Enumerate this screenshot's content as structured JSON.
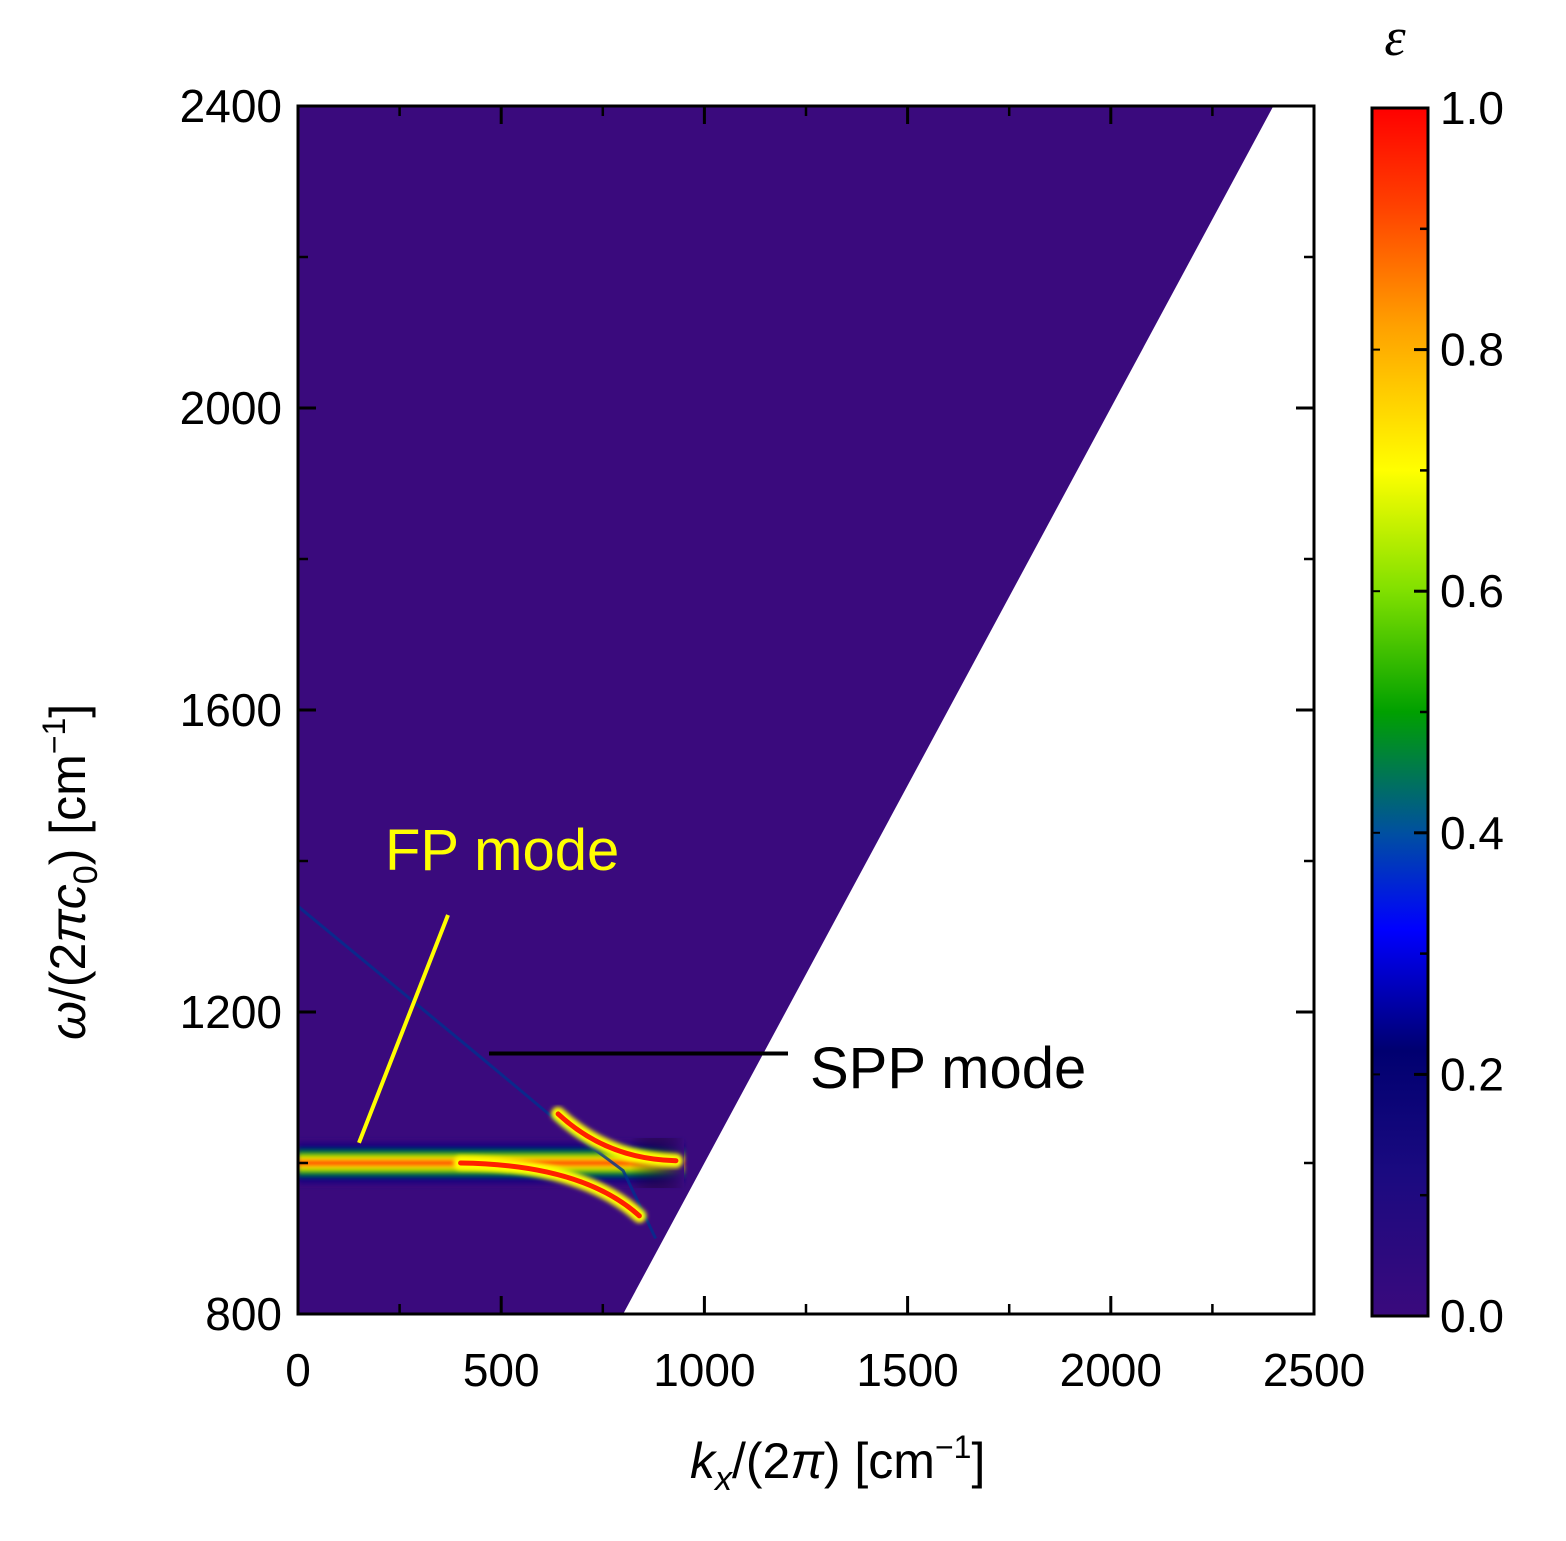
{
  "chart_data": {
    "type": "heatmap",
    "title": "",
    "xlabel": {
      "base": "k",
      "sub": "x",
      "mid": "/(2",
      "pi": "π",
      "close": ") [cm",
      "sup": "−1",
      "end": "]"
    },
    "ylabel": {
      "base": "ω",
      "mid": "/(2",
      "pi": "π",
      "c": "c",
      "sub": "0",
      "close": ") [cm",
      "sup": "−1",
      "end": "]"
    },
    "xlim": [
      0,
      2500
    ],
    "ylim": [
      800,
      2400
    ],
    "xticks": [
      "0",
      "500",
      "1000",
      "1500",
      "2000",
      "2500"
    ],
    "xtick_values": [
      0,
      500,
      1000,
      1500,
      2000,
      2500
    ],
    "yticks": [
      "800",
      "1200",
      "1600",
      "2000",
      "2400"
    ],
    "ytick_values": [
      800,
      1200,
      1600,
      2000,
      2400
    ],
    "light_line": {
      "k": [
        800,
        2400
      ],
      "omega": [
        800,
        2400
      ]
    },
    "fp_mode": {
      "omega": 1000,
      "k_from": 0,
      "k_to": 950,
      "peak": 1.0
    },
    "spp_mode": {
      "k": [
        0,
        450,
        650,
        750,
        800,
        880
      ],
      "omega": [
        1340,
        1140,
        1050,
        1010,
        990,
        900
      ]
    },
    "background_value": 0.02,
    "colorbar": {
      "label": "ε",
      "min": 0.0,
      "max": 1.0,
      "ticks": [
        "0.0",
        "0.2",
        "0.4",
        "0.6",
        "0.8",
        "1.0"
      ],
      "tick_values": [
        0.0,
        0.2,
        0.4,
        0.6,
        0.8,
        1.0
      ],
      "colors": [
        "#3a0a7d",
        "#0a0a80",
        "#0000ff",
        "#00c060",
        "#ffff00",
        "#ff8000",
        "#ff0000"
      ]
    },
    "annotations": [
      {
        "text": "FP mode",
        "color": "#ffff00",
        "target_k": 150,
        "target_omega": 1040
      },
      {
        "text": "SPP mode",
        "color": "#000000",
        "target_k": 470,
        "target_omega": 1145
      }
    ]
  }
}
